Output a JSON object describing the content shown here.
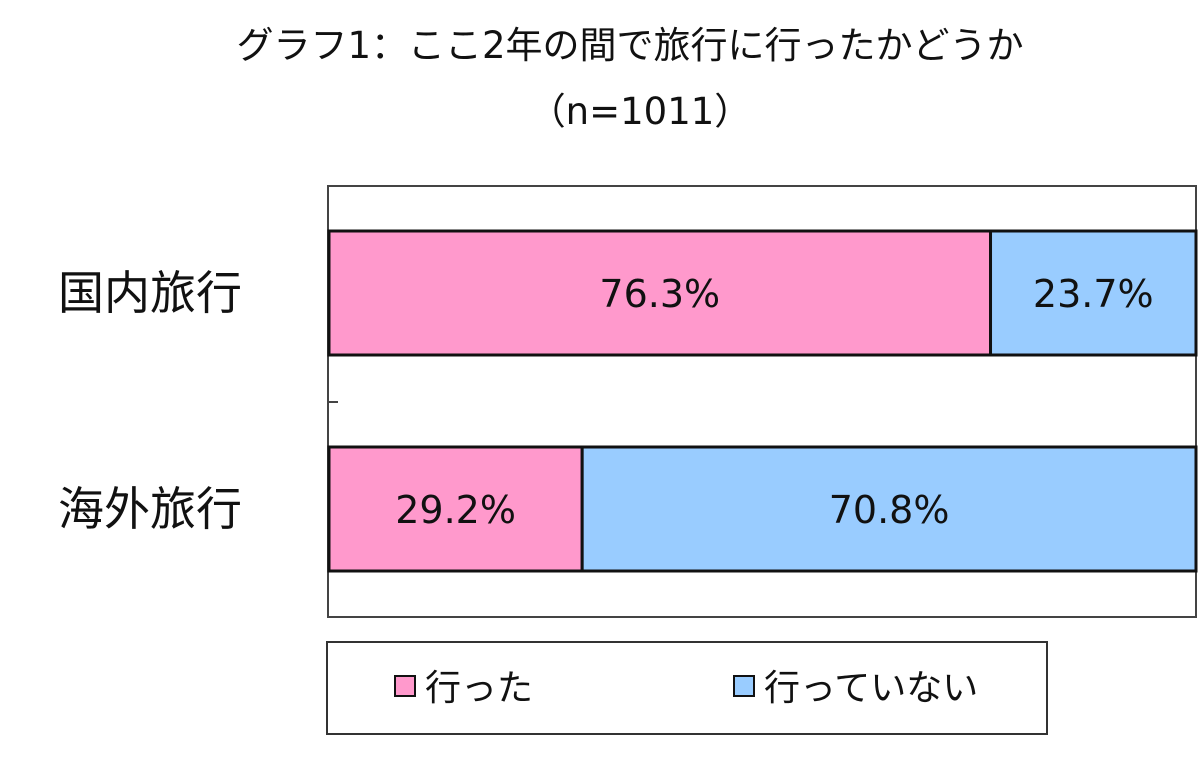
{
  "chart_data": {
    "type": "bar",
    "orientation": "horizontal",
    "stacked": true,
    "percent_stacked": true,
    "title": "グラフ1：ここ2年の間で旅行に行ったかどうか",
    "subtitle": "（n=1011）",
    "categories": [
      "国内旅行",
      "海外旅行"
    ],
    "series": [
      {
        "name": "行った",
        "values": [
          76.3,
          29.2
        ],
        "labels": [
          "76.3%",
          "29.2%"
        ],
        "color": "#ff99cc"
      },
      {
        "name": "行っていない",
        "values": [
          23.7,
          70.8
        ],
        "labels": [
          "23.7%",
          "70.8%"
        ],
        "color": "#99ccff"
      }
    ],
    "xlim": [
      0,
      100
    ],
    "grid": false,
    "legend_position": "bottom"
  }
}
